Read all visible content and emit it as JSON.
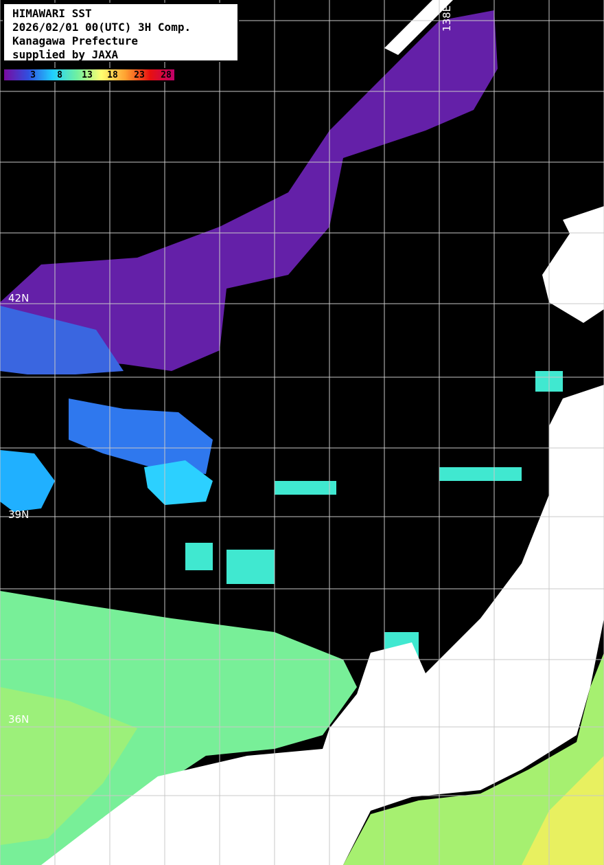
{
  "title_box": {
    "lines": [
      "HIMAWARI SST",
      "2026/02/01 00(UTC) 3H Comp.",
      "Kanagawa Prefecture",
      "supplied by JAXA"
    ]
  },
  "colorbar": {
    "unit_hint": "",
    "ticks": [
      "3",
      "8",
      "13",
      "18",
      "23",
      "28"
    ],
    "colors": [
      "#7a0aa0",
      "#3050e0",
      "#20d0ff",
      "#70f0a0",
      "#ffff70",
      "#ffa030",
      "#e81010",
      "#c0006a"
    ]
  },
  "grid_labels": {
    "longitude": [
      "138E"
    ],
    "latitude": [
      "42N",
      "39N",
      "36N"
    ]
  },
  "colors": {
    "land": "#ffffff",
    "no_data": "#000000",
    "grid": "#c8c8c8"
  }
}
